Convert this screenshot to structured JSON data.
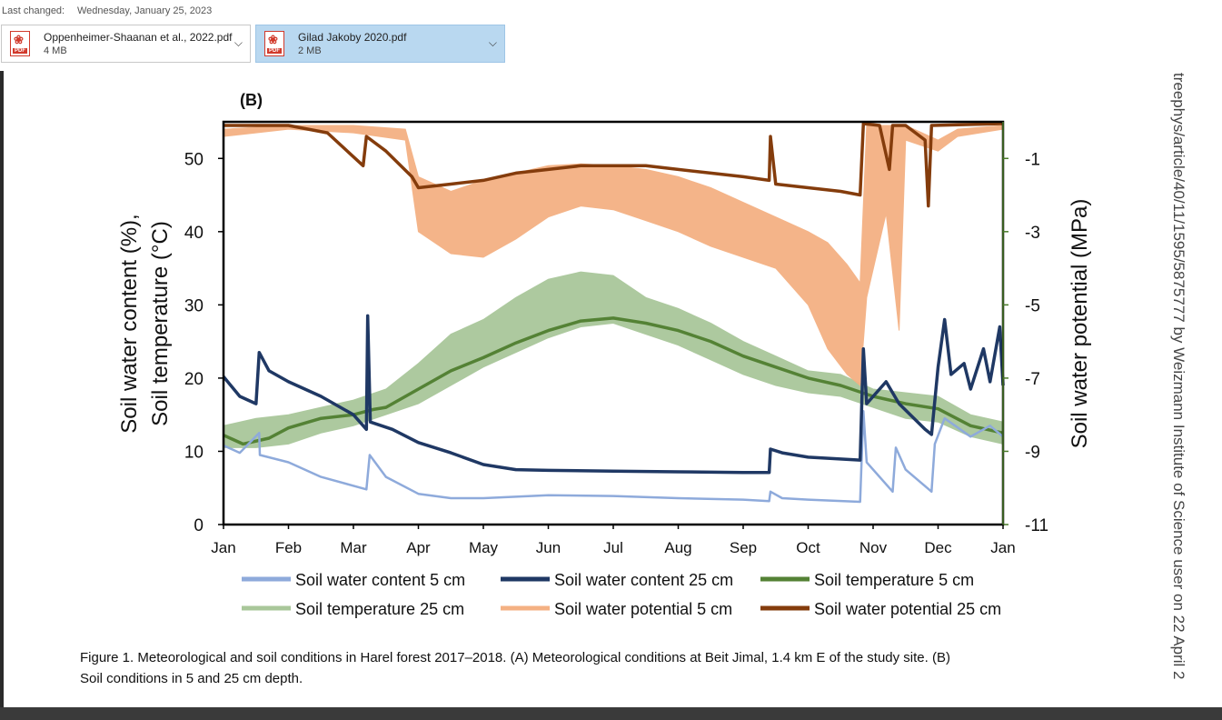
{
  "header": {
    "last_changed_label": "Last changed:",
    "last_changed_value": "Wednesday, January 25, 2023"
  },
  "attachments": [
    {
      "name": "Oppenheimer-Shaanan et al., 2022.pdf",
      "size": "4 MB",
      "selected": false,
      "icon": "pdf-icon"
    },
    {
      "name": "Gilad Jakoby 2020.pdf",
      "size": "2 MB",
      "selected": true,
      "icon": "pdf-icon"
    }
  ],
  "chart_data": {
    "type": "line",
    "title": "(B)",
    "ylabel_line1": "Soil water content (%),",
    "ylabel_line2": "Soil temperature (°C)",
    "y2label": "Soil water potential (MPa)",
    "ylim": [
      0,
      55
    ],
    "y2lim": [
      -11,
      0
    ],
    "yticks": [
      "0",
      "10",
      "20",
      "30",
      "40",
      "50"
    ],
    "y2ticks": [
      "-1",
      "-3",
      "-5",
      "-7",
      "-9",
      "-11"
    ],
    "categories": [
      "Jan",
      "Feb",
      "Mar",
      "Apr",
      "May",
      "Jun",
      "Jul",
      "Aug",
      "Sep",
      "Oct",
      "Nov",
      "Dec",
      "Jan"
    ],
    "grid": false,
    "legend_position": "bottom",
    "series": [
      {
        "name": "Soil water content 5 cm",
        "axis": "left",
        "color": "#8eaadb",
        "points": [
          [
            0,
            10.8
          ],
          [
            0.25,
            9.8
          ],
          [
            0.55,
            12.5
          ],
          [
            0.56,
            9.5
          ],
          [
            1,
            8.5
          ],
          [
            1.5,
            6.5
          ],
          [
            2.2,
            4.8
          ],
          [
            2.25,
            9.5
          ],
          [
            2.5,
            6.5
          ],
          [
            3,
            4.2
          ],
          [
            3.5,
            3.6
          ],
          [
            4,
            3.6
          ],
          [
            4.5,
            3.8
          ],
          [
            5,
            4.0
          ],
          [
            6,
            3.9
          ],
          [
            7,
            3.6
          ],
          [
            8,
            3.4
          ],
          [
            8.4,
            3.2
          ],
          [
            8.42,
            4.5
          ],
          [
            8.6,
            3.6
          ],
          [
            9,
            3.4
          ],
          [
            9.8,
            3.1
          ],
          [
            9.85,
            15.5
          ],
          [
            9.9,
            8.5
          ],
          [
            10.3,
            4.5
          ],
          [
            10.35,
            10.5
          ],
          [
            10.5,
            7.5
          ],
          [
            10.9,
            4.5
          ],
          [
            10.95,
            11
          ],
          [
            11.1,
            14.5
          ],
          [
            11.5,
            12
          ],
          [
            11.8,
            13.5
          ],
          [
            12,
            12
          ]
        ]
      },
      {
        "name": "Soil water content 25 cm",
        "axis": "left",
        "color": "#1f3864",
        "points": [
          [
            0,
            20.2
          ],
          [
            0.25,
            17.5
          ],
          [
            0.5,
            16.5
          ],
          [
            0.55,
            23.5
          ],
          [
            0.7,
            21
          ],
          [
            1,
            19.5
          ],
          [
            1.5,
            17.5
          ],
          [
            2,
            15
          ],
          [
            2.2,
            13
          ],
          [
            2.22,
            28.5
          ],
          [
            2.26,
            14
          ],
          [
            2.6,
            13
          ],
          [
            3,
            11.2
          ],
          [
            3.5,
            9.8
          ],
          [
            4,
            8.2
          ],
          [
            4.5,
            7.5
          ],
          [
            5,
            7.4
          ],
          [
            6,
            7.3
          ],
          [
            7,
            7.2
          ],
          [
            8,
            7.1
          ],
          [
            8.4,
            7.1
          ],
          [
            8.42,
            10.3
          ],
          [
            8.6,
            9.8
          ],
          [
            9,
            9.2
          ],
          [
            9.8,
            8.8
          ],
          [
            9.85,
            24
          ],
          [
            9.9,
            16.5
          ],
          [
            10.2,
            19.5
          ],
          [
            10.4,
            16.5
          ],
          [
            10.8,
            13
          ],
          [
            10.9,
            12.3
          ],
          [
            11.0,
            21.5
          ],
          [
            11.1,
            28
          ],
          [
            11.2,
            20.5
          ],
          [
            11.4,
            22
          ],
          [
            11.5,
            18.5
          ],
          [
            11.7,
            24
          ],
          [
            11.8,
            19.5
          ],
          [
            11.95,
            27
          ],
          [
            12,
            19
          ]
        ]
      },
      {
        "name": "Soil temperature 5 cm",
        "axis": "left",
        "color": "#548235",
        "points": [
          [
            0,
            12.2
          ],
          [
            0.3,
            11
          ],
          [
            0.7,
            11.8
          ],
          [
            1,
            13.2
          ],
          [
            1.5,
            14.5
          ],
          [
            2,
            15
          ],
          [
            2.3,
            15.7
          ],
          [
            2.5,
            16
          ],
          [
            3,
            18.5
          ],
          [
            3.5,
            21
          ],
          [
            4,
            22.8
          ],
          [
            4.5,
            24.8
          ],
          [
            5,
            26.5
          ],
          [
            5.5,
            27.8
          ],
          [
            6,
            28.2
          ],
          [
            6.5,
            27.5
          ],
          [
            7,
            26.5
          ],
          [
            7.5,
            25
          ],
          [
            8,
            23
          ],
          [
            8.5,
            21.5
          ],
          [
            9,
            20
          ],
          [
            9.5,
            19
          ],
          [
            10,
            17.5
          ],
          [
            10.5,
            16.5
          ],
          [
            11,
            15.8
          ],
          [
            11.5,
            13.5
          ],
          [
            12,
            12.5
          ]
        ]
      },
      {
        "name": "Soil temperature 25 cm",
        "axis": "left",
        "color": "#a9c79a",
        "band": true,
        "upper": [
          [
            0,
            13.5
          ],
          [
            0.5,
            14.5
          ],
          [
            1,
            15
          ],
          [
            1.5,
            16
          ],
          [
            2,
            17
          ],
          [
            2.5,
            18.5
          ],
          [
            3,
            22
          ],
          [
            3.5,
            26
          ],
          [
            4,
            28
          ],
          [
            4.5,
            31
          ],
          [
            5,
            33.5
          ],
          [
            5.5,
            34.5
          ],
          [
            6,
            34
          ],
          [
            6.5,
            31
          ],
          [
            7,
            29.5
          ],
          [
            7.5,
            27.5
          ],
          [
            8,
            25
          ],
          [
            8.5,
            23
          ],
          [
            9,
            21
          ],
          [
            9.5,
            20.5
          ],
          [
            10,
            18.5
          ],
          [
            10.5,
            18
          ],
          [
            11,
            17.5
          ],
          [
            11.5,
            15
          ],
          [
            12,
            14
          ]
        ],
        "lower": [
          [
            0,
            10.5
          ],
          [
            0.5,
            10.5
          ],
          [
            1,
            11
          ],
          [
            1.5,
            12.5
          ],
          [
            2,
            13.5
          ],
          [
            2.5,
            15
          ],
          [
            3,
            16.5
          ],
          [
            3.5,
            19
          ],
          [
            4,
            21.5
          ],
          [
            4.5,
            23.5
          ],
          [
            5,
            25.5
          ],
          [
            5.5,
            27
          ],
          [
            6,
            27.5
          ],
          [
            6.5,
            26
          ],
          [
            7,
            24.5
          ],
          [
            7.5,
            22.5
          ],
          [
            8,
            20.5
          ],
          [
            8.5,
            19
          ],
          [
            9,
            18
          ],
          [
            9.5,
            17.5
          ],
          [
            10,
            16
          ],
          [
            10.5,
            14.5
          ],
          [
            11,
            14
          ],
          [
            11.5,
            12
          ],
          [
            12,
            11
          ]
        ]
      },
      {
        "name": "Soil water potential 5 cm",
        "axis": "right",
        "color": "#f4b183",
        "band": true,
        "upper": [
          [
            0,
            -0.2
          ],
          [
            1,
            -0.1
          ],
          [
            2,
            -0.1
          ],
          [
            2.8,
            -0.2
          ],
          [
            3,
            -1.5
          ],
          [
            3.5,
            -1.9
          ],
          [
            4,
            -1.6
          ],
          [
            4.5,
            -1.4
          ],
          [
            5,
            -1.2
          ],
          [
            5.5,
            -1.15
          ],
          [
            6,
            -1.2
          ],
          [
            6.5,
            -1.3
          ],
          [
            7,
            -1.5
          ],
          [
            7.5,
            -1.8
          ],
          [
            8,
            -2.2
          ],
          [
            8.5,
            -2.6
          ],
          [
            9,
            -3.0
          ],
          [
            9.3,
            -3.3
          ],
          [
            9.6,
            -3.9
          ],
          [
            9.8,
            -4.4
          ],
          [
            9.9,
            -0.1
          ],
          [
            10.3,
            -0.1
          ],
          [
            10.5,
            -0.1
          ],
          [
            11,
            -0.5
          ],
          [
            11.3,
            -0.2
          ],
          [
            12,
            -0.1
          ]
        ],
        "lower": [
          [
            0,
            -0.4
          ],
          [
            1,
            -0.2
          ],
          [
            2,
            -0.3
          ],
          [
            2.8,
            -0.5
          ],
          [
            3,
            -3.0
          ],
          [
            3.5,
            -3.6
          ],
          [
            4,
            -3.7
          ],
          [
            4.5,
            -3.2
          ],
          [
            5,
            -2.6
          ],
          [
            5.5,
            -2.3
          ],
          [
            6,
            -2.4
          ],
          [
            6.5,
            -2.7
          ],
          [
            7,
            -3.0
          ],
          [
            7.5,
            -3.4
          ],
          [
            8,
            -3.7
          ],
          [
            8.5,
            -4.0
          ],
          [
            9,
            -5.0
          ],
          [
            9.3,
            -6.2
          ],
          [
            9.6,
            -6.9
          ],
          [
            9.8,
            -7.2
          ],
          [
            9.9,
            -4.8
          ],
          [
            10.2,
            -2.5
          ],
          [
            10.4,
            -5.7
          ],
          [
            10.5,
            -0.5
          ],
          [
            11,
            -0.8
          ],
          [
            11.3,
            -0.4
          ],
          [
            12,
            -0.2
          ]
        ]
      },
      {
        "name": "Soil water potential 25 cm",
        "axis": "right",
        "color": "#843c0c",
        "points": [
          [
            0,
            -0.1
          ],
          [
            1,
            -0.1
          ],
          [
            1.6,
            -0.3
          ],
          [
            2.15,
            -1.2
          ],
          [
            2.2,
            -0.4
          ],
          [
            2.5,
            -0.8
          ],
          [
            2.9,
            -1.5
          ],
          [
            3,
            -1.8
          ],
          [
            3.5,
            -1.7
          ],
          [
            4,
            -1.6
          ],
          [
            4.5,
            -1.4
          ],
          [
            5,
            -1.3
          ],
          [
            5.5,
            -1.2
          ],
          [
            6,
            -1.2
          ],
          [
            6.5,
            -1.2
          ],
          [
            7,
            -1.3
          ],
          [
            7.5,
            -1.4
          ],
          [
            8,
            -1.5
          ],
          [
            8.4,
            -1.6
          ],
          [
            8.42,
            -0.4
          ],
          [
            8.5,
            -1.7
          ],
          [
            9,
            -1.8
          ],
          [
            9.5,
            -1.9
          ],
          [
            9.8,
            -2.0
          ],
          [
            9.85,
            -0.05
          ],
          [
            10.1,
            -0.1
          ],
          [
            10.25,
            -1.3
          ],
          [
            10.3,
            -0.1
          ],
          [
            10.5,
            -0.1
          ],
          [
            10.8,
            -0.5
          ],
          [
            10.85,
            -2.3
          ],
          [
            10.9,
            -0.1
          ],
          [
            12,
            -0.05
          ]
        ]
      }
    ]
  },
  "caption": {
    "line1": "Figure 1. Meteorological and soil conditions in Harel forest 2017–2018. (A) Meteorological conditions at Beit Jimal, 1.4 km E of the study site. (B)",
    "line2": "Soil conditions in 5 and 25 cm depth."
  },
  "side_text": "treephys/article/40/11/1595/5875777 by Weizmann Institute of Science user on 22 April 2"
}
